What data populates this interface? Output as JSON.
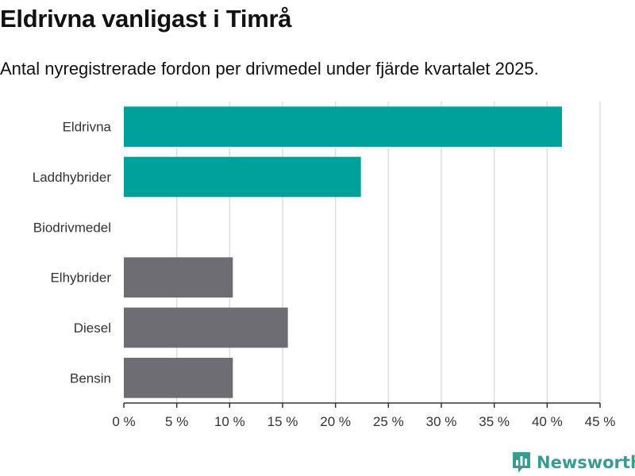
{
  "header": {
    "title": "Eldrivna vanligast i Timrå",
    "subtitle": "Antal nyregistrerade fordon per drivmedel under fjärde kvartalet 2025."
  },
  "brand": {
    "name": "Newsworthy",
    "color": "#3a9b91"
  },
  "colors": {
    "green": "#00a19a",
    "gray": "#6e6d74",
    "grid": "#dddddd"
  },
  "chart_data": {
    "type": "bar",
    "orientation": "horizontal",
    "title": "Eldrivna vanligast i Timrå",
    "subtitle": "Antal nyregistrerade fordon per drivmedel under fjärde kvartalet 2025.",
    "xlabel": "",
    "ylabel": "",
    "categories": [
      "Eldrivna",
      "Laddhybrider",
      "Biodrivmedel",
      "Elhybrider",
      "Diesel",
      "Bensin"
    ],
    "values": [
      41.4,
      22.4,
      0,
      10.3,
      15.5,
      10.3
    ],
    "bar_colors": [
      "green",
      "green",
      "green",
      "gray",
      "gray",
      "gray"
    ],
    "xlim": [
      0,
      45
    ],
    "xticks": [
      0,
      5,
      10,
      15,
      20,
      25,
      30,
      35,
      40,
      45
    ],
    "tick_labels": [
      "0 %",
      "5 %",
      "10 %",
      "15 %",
      "20 %",
      "25 %",
      "30 %",
      "35 %",
      "40 %",
      "45 %"
    ],
    "grid": true
  }
}
